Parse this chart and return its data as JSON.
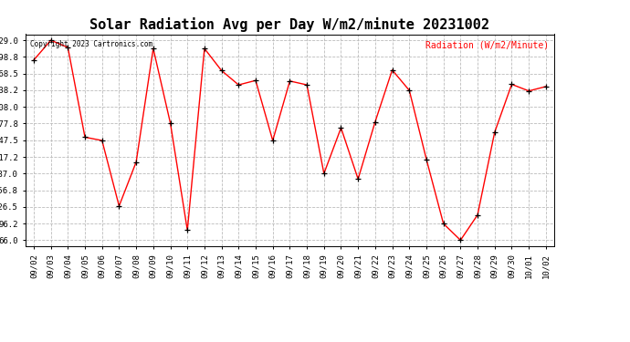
{
  "title": "Solar Radiation Avg per Day W/m2/minute 20231002",
  "copyright": "Copyright 2023 Cartronics.com",
  "legend_label": "Radiation (W/m2/Minute)",
  "dates": [
    "09/02",
    "09/03",
    "09/04",
    "09/05",
    "09/06",
    "09/07",
    "09/08",
    "09/09",
    "09/10",
    "09/11",
    "09/12",
    "09/13",
    "09/14",
    "09/15",
    "09/16",
    "09/17",
    "09/18",
    "09/19",
    "09/20",
    "09/21",
    "09/22",
    "09/23",
    "09/24",
    "09/25",
    "09/26",
    "09/27",
    "09/28",
    "09/29",
    "09/30",
    "10/01",
    "10/02"
  ],
  "values": [
    393,
    429,
    416,
    253,
    247,
    128,
    208,
    414,
    279,
    84,
    414,
    374,
    348,
    356,
    247,
    355,
    348,
    187,
    270,
    177,
    281,
    375,
    338,
    213,
    96,
    66,
    112,
    262,
    349,
    337,
    345
  ],
  "line_color": "red",
  "marker_color": "black",
  "grid_color": "#bbbbbb",
  "bg_color": "white",
  "yticks": [
    66.0,
    96.2,
    126.5,
    156.8,
    187.0,
    217.2,
    247.5,
    277.8,
    308.0,
    338.2,
    368.5,
    398.8,
    429.0
  ],
  "ymin": 55,
  "ymax": 440,
  "title_fontsize": 11,
  "copyright_fontsize": 5.5,
  "legend_fontsize": 7,
  "tick_fontsize": 6.5
}
